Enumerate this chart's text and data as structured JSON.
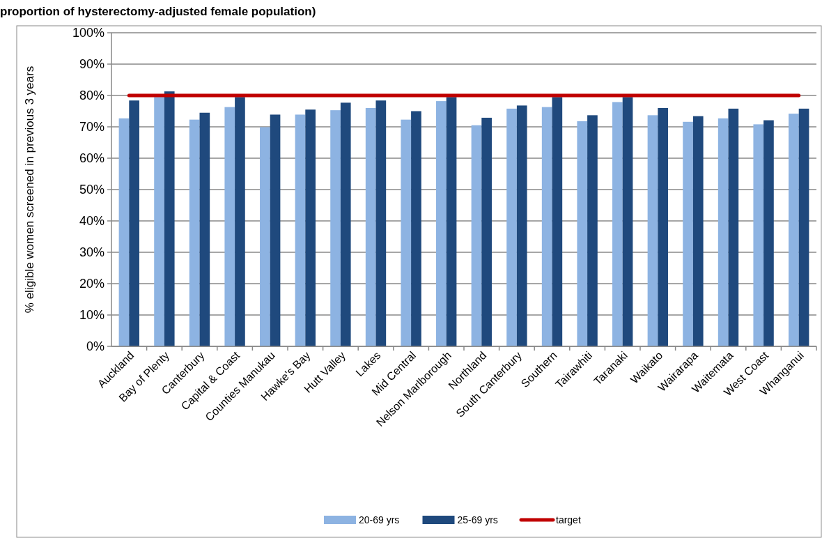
{
  "chart_data": {
    "type": "bar",
    "title": "proportion of hysterectomy-adjusted female population)",
    "ylabel": "% eligible women screened  in previous 3 years",
    "categories": [
      "Auckland",
      "Bay of Plenty",
      "Canterbury",
      "Capital & Coast",
      "Counties Manukau",
      "Hawke's Bay",
      "Hutt Valley",
      "Lakes",
      "Mid Central",
      "Nelson Marlborough",
      "Northland",
      "South Canterbury",
      "Southern",
      "Tairawhiti",
      "Taranaki",
      "Waikato",
      "Wairarapa",
      "Waitemata",
      "West Coast",
      "Whanganui"
    ],
    "series": [
      {
        "name": "20-69 yrs",
        "color": "#8db3e2",
        "values": [
          72.7,
          79.5,
          72.3,
          76.3,
          69.9,
          73.9,
          75.3,
          76.0,
          72.3,
          78.2,
          70.5,
          75.8,
          76.3,
          71.8,
          77.9,
          73.7,
          71.6,
          72.7,
          70.8,
          74.2
        ]
      },
      {
        "name": "25-69 yrs",
        "color": "#1f497d",
        "values": [
          78.4,
          81.3,
          74.5,
          79.5,
          73.9,
          75.5,
          77.7,
          78.4,
          75.0,
          79.5,
          72.9,
          76.8,
          79.5,
          73.7,
          79.5,
          76.0,
          73.4,
          75.8,
          72.1,
          75.8
        ]
      },
      {
        "name": "target",
        "type": "line",
        "color": "#c00000",
        "values": [
          80,
          80,
          80,
          80,
          80,
          80,
          80,
          80,
          80,
          80,
          80,
          80,
          80,
          80,
          80,
          80,
          80,
          80,
          80,
          80
        ]
      }
    ],
    "ylim": [
      0,
      100
    ],
    "yticks": [
      {
        "value": 0,
        "label": "0%"
      },
      {
        "value": 10,
        "label": "10%"
      },
      {
        "value": 20,
        "label": "20%"
      },
      {
        "value": 30,
        "label": "30%"
      },
      {
        "value": 40,
        "label": "40%"
      },
      {
        "value": 50,
        "label": "50%"
      },
      {
        "value": 60,
        "label": "60%"
      },
      {
        "value": 70,
        "label": "70%"
      },
      {
        "value": 80,
        "label": "80%"
      },
      {
        "value": 90,
        "label": "90%"
      },
      {
        "value": 100,
        "label": "100%"
      }
    ],
    "grid": "y",
    "legend": "bottom"
  }
}
